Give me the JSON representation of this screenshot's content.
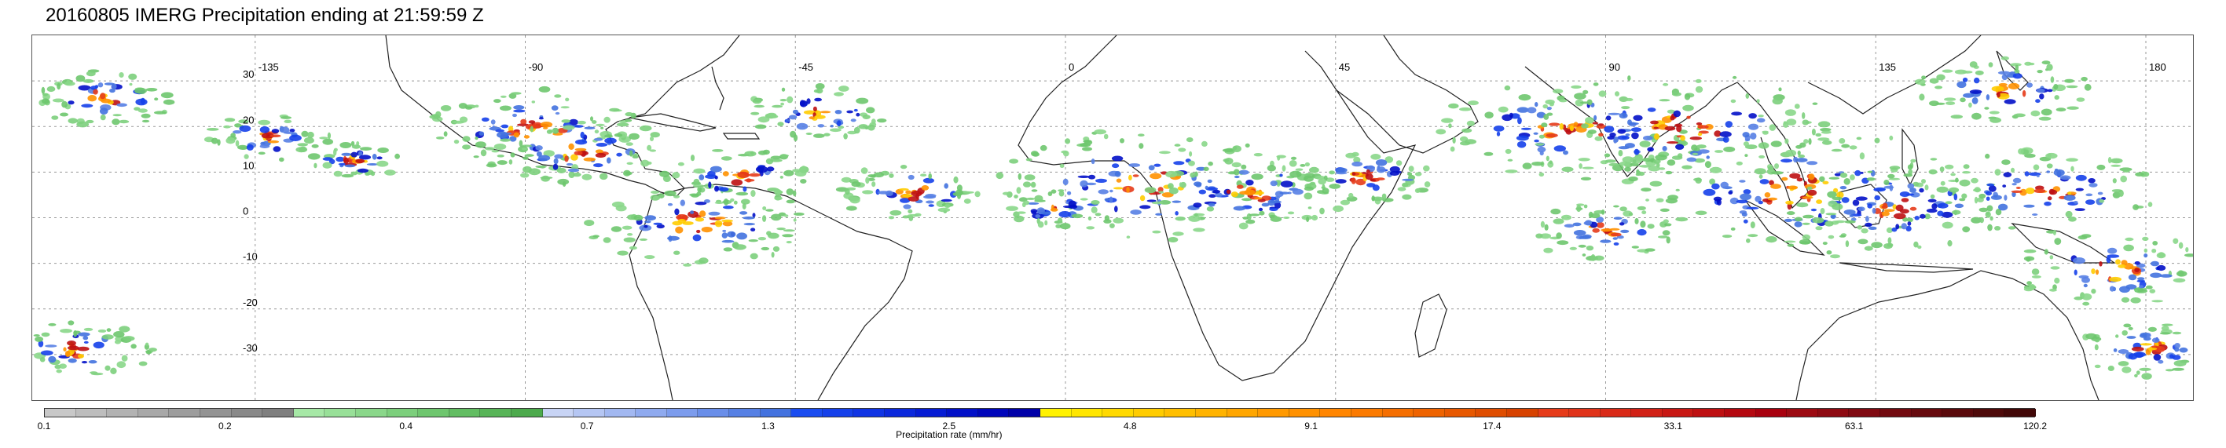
{
  "title": "20160805 IMERG Precipitation ending at 21:59:59 Z",
  "lon_labels": [
    "-135",
    "-90",
    "-45",
    "0",
    "45",
    "90",
    "135",
    "180"
  ],
  "lat_labels": [
    "30",
    "20",
    "10",
    "0",
    "-10",
    "-20",
    "-30"
  ],
  "colorbar": {
    "label": "Precipitation rate (mm/hr)",
    "ticks": [
      "0.1",
      "0.2",
      "0.4",
      "0.7",
      "1.3",
      "2.5",
      "4.8",
      "9.1",
      "17.4",
      "33.1",
      "63.1",
      "120.2"
    ],
    "groups": [
      [
        "#c8c8c8",
        "#bdbdbd",
        "#b2b2b2",
        "#a8a8a8",
        "#9d9d9d",
        "#939393",
        "#898989",
        "#7f7f7f"
      ],
      [
        "#a6e8a6",
        "#98e098",
        "#8ad78a",
        "#7ccf7c",
        "#6ec66e",
        "#62bd62",
        "#57b457",
        "#4caa4c"
      ],
      [
        "#c8d4f5",
        "#b5c6f3",
        "#a2b8f1",
        "#8faaef",
        "#7c9ced",
        "#698ee9",
        "#5680e4",
        "#4372df"
      ],
      [
        "#1a4cf0",
        "#1540ea",
        "#1034e4",
        "#0b28dc",
        "#061cd4",
        "#0210c8",
        "#0006bb",
        "#0000a8"
      ],
      [
        "#fff200",
        "#ffe600",
        "#ffd900",
        "#ffcc00",
        "#ffbf00",
        "#ffb300",
        "#ffa600",
        "#ff9900"
      ],
      [
        "#ff9100",
        "#ff8500",
        "#fb7a00",
        "#f56e00",
        "#ee6300",
        "#e75800",
        "#df4d00",
        "#d74200"
      ],
      [
        "#e63b1a",
        "#e0331a",
        "#d92a18",
        "#d12116",
        "#c81814",
        "#be1012",
        "#b40810",
        "#a8000e"
      ],
      [
        "#9c0a12",
        "#8e0a12",
        "#800a12",
        "#720a10",
        "#660a0e",
        "#5a0a0c",
        "#4e0a0a",
        "#420808"
      ]
    ]
  }
}
